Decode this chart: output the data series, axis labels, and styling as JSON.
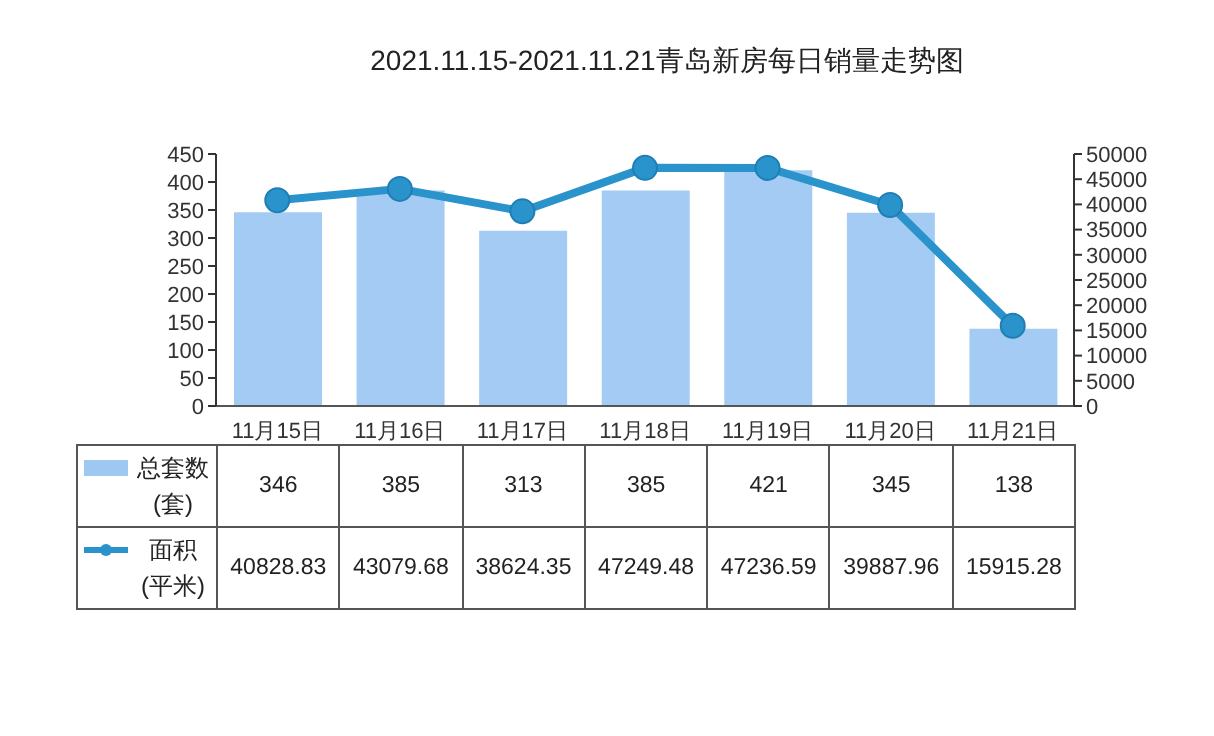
{
  "chart_data": {
    "type": "bar",
    "title": "2021.11.15-2021.11.21青岛新房每日销量走势图",
    "categories": [
      "11月15日",
      "11月16日",
      "11月17日",
      "11月18日",
      "11月19日",
      "11月20日",
      "11月21日"
    ],
    "series": [
      {
        "name": "总套数(套)",
        "color": "#9ec8f2",
        "values": [
          346,
          385,
          313,
          385,
          421,
          345,
          138
        ]
      },
      {
        "name": "面积(平米)",
        "type": "line",
        "axis": "y2",
        "color": "#2a93cc",
        "values": [
          40828.83,
          43079.68,
          38624.35,
          47249.48,
          47236.59,
          39887.96,
          15915.28
        ]
      }
    ],
    "ylim": [
      0,
      450
    ],
    "yticks": [
      0,
      50,
      100,
      150,
      200,
      250,
      300,
      350,
      400,
      450
    ],
    "y2lim": [
      0,
      50000
    ],
    "y2ticks": [
      0,
      5000,
      10000,
      15000,
      20000,
      25000,
      30000,
      35000,
      40000,
      45000,
      50000
    ],
    "data_labels": true,
    "legend": "bottom left",
    "grid": false,
    "marker": "circle",
    "line_style": "solid"
  }
}
